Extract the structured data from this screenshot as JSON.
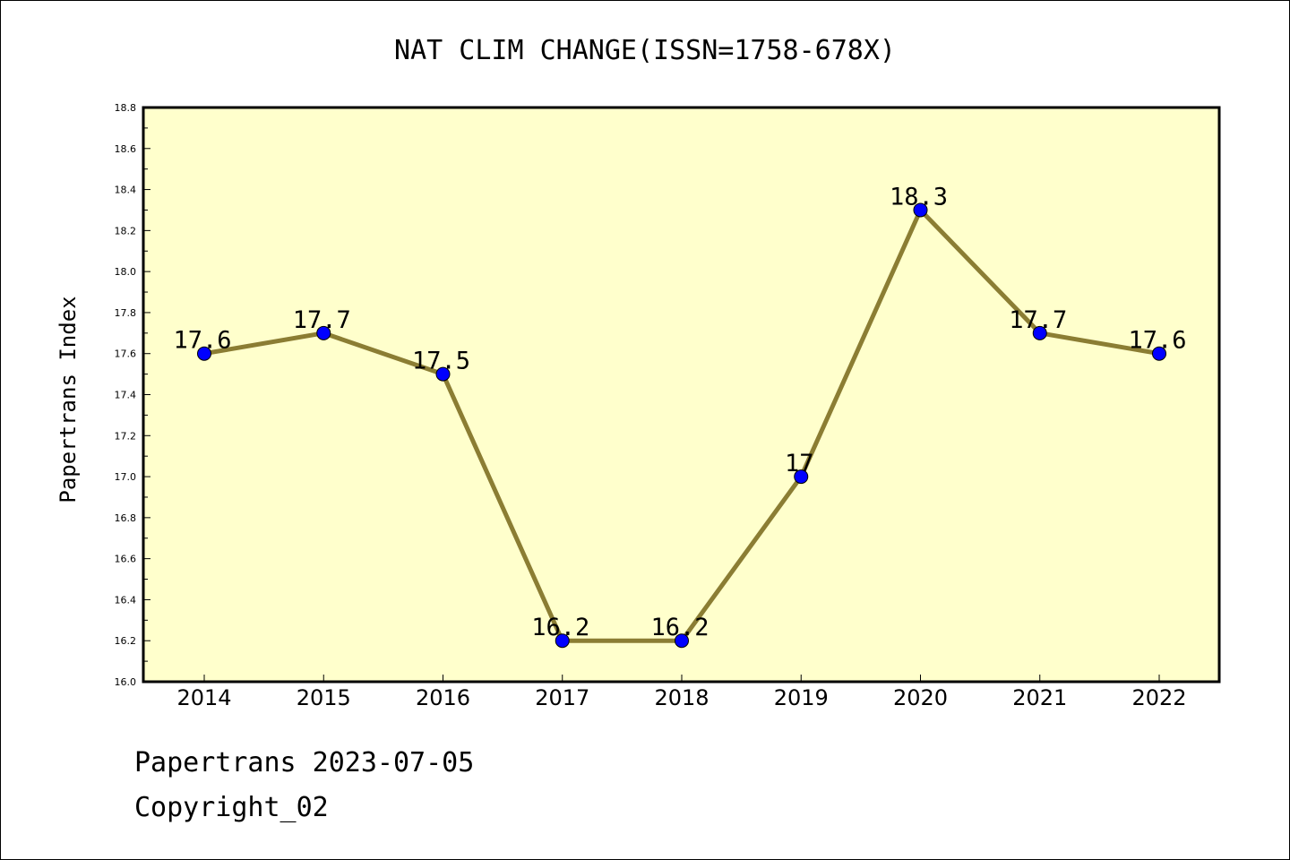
{
  "chart_data": {
    "type": "line",
    "title": "NAT CLIM CHANGE(ISSN=1758-678X)",
    "ylabel": "Papertrans Index",
    "xlabel": "",
    "categories": [
      "2014",
      "2015",
      "2016",
      "2017",
      "2018",
      "2019",
      "2020",
      "2021",
      "2022"
    ],
    "values": [
      17.6,
      17.7,
      17.5,
      16.2,
      16.2,
      17.0,
      18.3,
      17.7,
      17.6
    ],
    "data_labels": [
      "17.6",
      "17.7",
      "17.5",
      "16.2",
      "16.2",
      "17",
      "18.3",
      "17.7",
      "17.6"
    ],
    "ylim": [
      16.0,
      18.8
    ],
    "yticks": [
      "16.0",
      "16.2",
      "16.4",
      "16.6",
      "16.8",
      "17.0",
      "17.2",
      "17.4",
      "17.6",
      "17.8",
      "18.0",
      "18.2",
      "18.4",
      "18.6",
      "18.8"
    ],
    "grid": false,
    "legend": "none",
    "colors": {
      "plot_background": "#ffffcc",
      "line": "#8b7d33",
      "marker": "#0000ff"
    }
  },
  "footer": {
    "line1": "Papertrans 2023-07-05",
    "line2": "Copyright_02"
  }
}
